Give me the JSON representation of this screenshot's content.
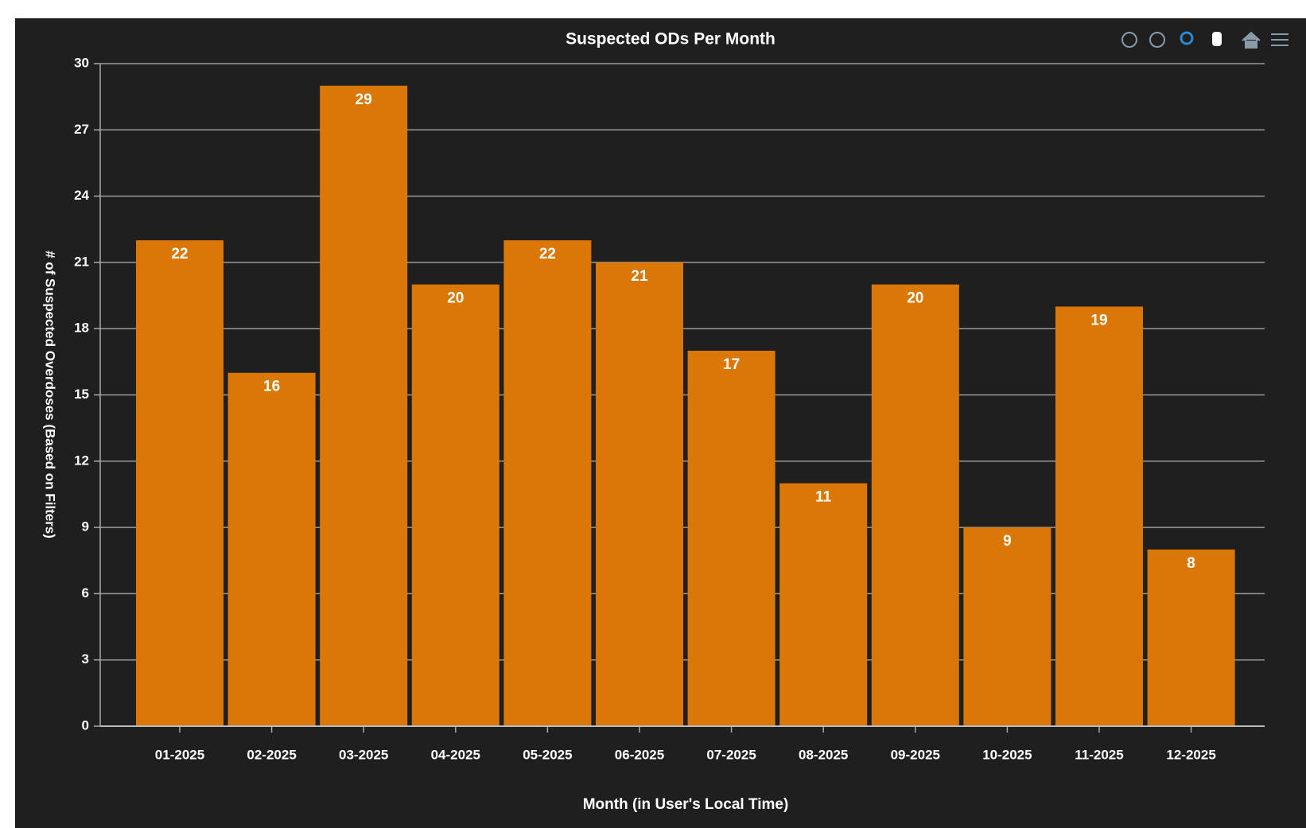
{
  "chart_data": {
    "type": "bar",
    "title": "Suspected ODs Per Month",
    "xlabel": "Month (in User's Local Time)",
    "ylabel": "# of Suspected Overdoses (Based on Filters)",
    "categories": [
      "01-2025",
      "02-2025",
      "03-2025",
      "04-2025",
      "05-2025",
      "06-2025",
      "07-2025",
      "08-2025",
      "09-2025",
      "10-2025",
      "11-2025",
      "12-2025"
    ],
    "values": [
      22,
      16,
      29,
      20,
      22,
      21,
      17,
      11,
      20,
      9,
      19,
      8
    ],
    "color": "#db7706",
    "ylim": [
      0,
      30
    ],
    "yticks": [
      0,
      3,
      6,
      9,
      12,
      15,
      18,
      21,
      24,
      27,
      30
    ],
    "grid": true
  }
}
